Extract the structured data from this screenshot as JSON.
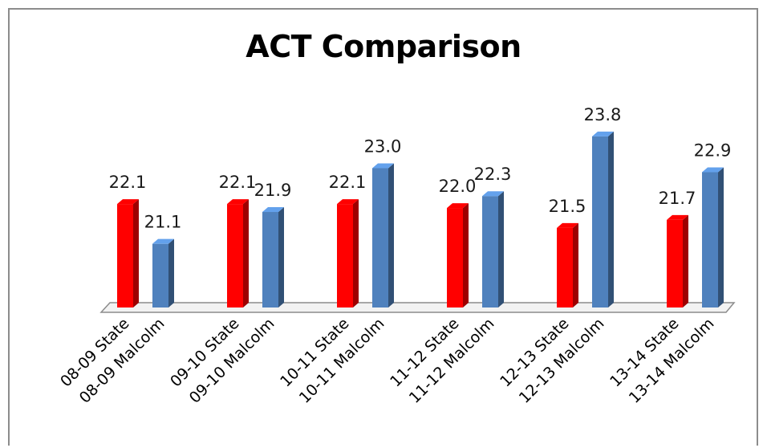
{
  "chart_data": {
    "type": "bar",
    "title": "ACT Comparison",
    "categories": [
      "08-09 State",
      "08-09 Malcolm",
      "09-10 State",
      "09-10 Malcolm",
      "10-11 State",
      "10-11 Malcolm",
      "11-12 State",
      "11-12 Malcolm",
      "12-13 State",
      "12-13 Malcolm",
      "13-14 State",
      "13-14 Malcolm"
    ],
    "values": [
      22.1,
      21.1,
      22.1,
      21.9,
      22.1,
      23.0,
      22.0,
      22.3,
      21.5,
      23.8,
      21.7,
      22.9
    ],
    "value_labels": [
      "22.1",
      "21.1",
      "22.1",
      "21.9",
      "22.1",
      "23.0",
      "22.0",
      "22.3",
      "21.5",
      "23.8",
      "21.7",
      "22.9"
    ],
    "colors": [
      "#ff0000",
      "#4f81bd",
      "#ff0000",
      "#4f81bd",
      "#ff0000",
      "#4f81bd",
      "#ff0000",
      "#4f81bd",
      "#ff0000",
      "#4f81bd",
      "#ff0000",
      "#4f81bd"
    ],
    "ylim": [
      19.5,
      24.2
    ],
    "xlabel": "",
    "ylabel": "",
    "grid": false,
    "legend": "none",
    "style": "3d-columns"
  }
}
